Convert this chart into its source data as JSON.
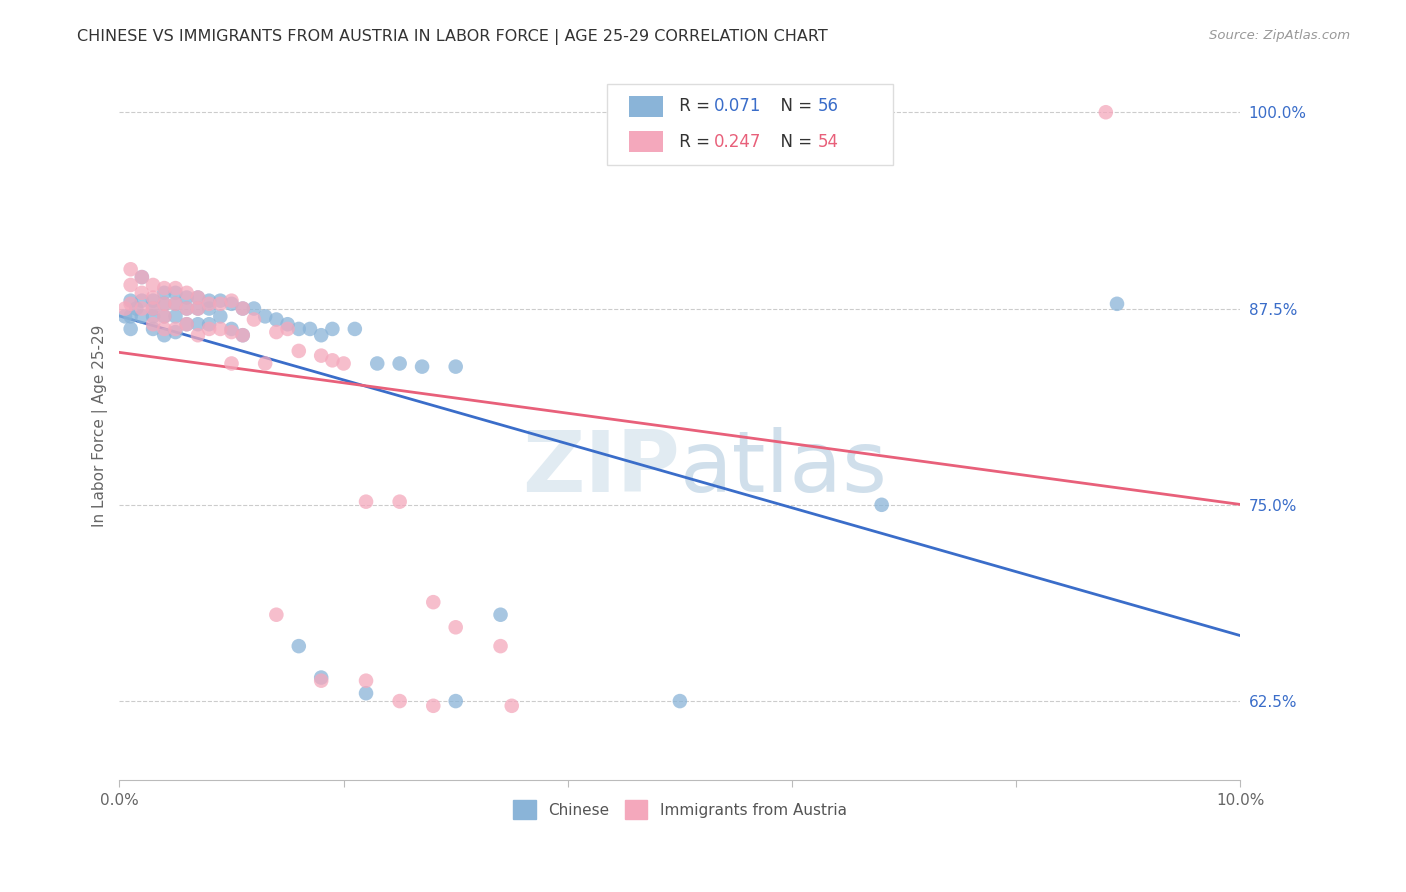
{
  "title": "CHINESE VS IMMIGRANTS FROM AUSTRIA IN LABOR FORCE | AGE 25-29 CORRELATION CHART",
  "source": "Source: ZipAtlas.com",
  "ylabel": "In Labor Force | Age 25-29",
  "xlim": [
    0.0,
    0.1
  ],
  "ylim": [
    0.575,
    1.025
  ],
  "xticks": [
    0.0,
    0.02,
    0.04,
    0.06,
    0.08,
    0.1
  ],
  "xtick_labels": [
    "0.0%",
    "",
    "",
    "",
    "",
    "10.0%"
  ],
  "ytick_labels": [
    "62.5%",
    "75.0%",
    "87.5%",
    "100.0%"
  ],
  "ytick_values": [
    0.625,
    0.75,
    0.875,
    1.0
  ],
  "grid_color": "#cccccc",
  "legend_blue_label": "R = 0.071   N = 56",
  "legend_pink_label": "R = 0.247   N = 54",
  "legend_label_chinese": "Chinese",
  "legend_label_austria": "Immigrants from Austria",
  "blue_color": "#8ab4d8",
  "pink_color": "#f4a8bc",
  "blue_line_color": "#3a6dc9",
  "pink_line_color": "#e8607a",
  "blue_R": 0.071,
  "blue_N": 56,
  "pink_R": 0.247,
  "pink_N": 54,
  "chinese_x": [
    0.0005,
    0.001,
    0.001,
    0.001,
    0.0015,
    0.002,
    0.002,
    0.002,
    0.003,
    0.003,
    0.003,
    0.003,
    0.004,
    0.004,
    0.004,
    0.004,
    0.005,
    0.005,
    0.005,
    0.005,
    0.006,
    0.006,
    0.006,
    0.007,
    0.007,
    0.007,
    0.008,
    0.008,
    0.008,
    0.009,
    0.009,
    0.01,
    0.01,
    0.011,
    0.011,
    0.012,
    0.013,
    0.014,
    0.015,
    0.016,
    0.017,
    0.018,
    0.019,
    0.021,
    0.023,
    0.025,
    0.027,
    0.03,
    0.034,
    0.016,
    0.018,
    0.022,
    0.03,
    0.05,
    0.068,
    0.089
  ],
  "chinese_y": [
    0.87,
    0.88,
    0.87,
    0.862,
    0.875,
    0.895,
    0.88,
    0.87,
    0.88,
    0.875,
    0.87,
    0.862,
    0.885,
    0.878,
    0.87,
    0.858,
    0.885,
    0.878,
    0.87,
    0.86,
    0.882,
    0.875,
    0.865,
    0.882,
    0.875,
    0.865,
    0.88,
    0.875,
    0.865,
    0.88,
    0.87,
    0.878,
    0.862,
    0.875,
    0.858,
    0.875,
    0.87,
    0.868,
    0.865,
    0.862,
    0.862,
    0.858,
    0.862,
    0.862,
    0.84,
    0.84,
    0.838,
    0.838,
    0.68,
    0.66,
    0.64,
    0.63,
    0.625,
    0.625,
    0.75,
    0.878
  ],
  "austria_x": [
    0.0005,
    0.001,
    0.001,
    0.001,
    0.002,
    0.002,
    0.002,
    0.003,
    0.003,
    0.003,
    0.003,
    0.004,
    0.004,
    0.004,
    0.004,
    0.005,
    0.005,
    0.005,
    0.006,
    0.006,
    0.006,
    0.007,
    0.007,
    0.007,
    0.008,
    0.008,
    0.009,
    0.009,
    0.01,
    0.01,
    0.011,
    0.011,
    0.012,
    0.013,
    0.014,
    0.015,
    0.016,
    0.018,
    0.019,
    0.02,
    0.022,
    0.025,
    0.028,
    0.03,
    0.034,
    0.01,
    0.014,
    0.018,
    0.022,
    0.025,
    0.028,
    0.035,
    0.068,
    0.088
  ],
  "austria_y": [
    0.875,
    0.9,
    0.89,
    0.878,
    0.895,
    0.885,
    0.875,
    0.89,
    0.882,
    0.875,
    0.865,
    0.888,
    0.878,
    0.87,
    0.862,
    0.888,
    0.878,
    0.862,
    0.885,
    0.875,
    0.865,
    0.882,
    0.875,
    0.858,
    0.878,
    0.862,
    0.878,
    0.862,
    0.88,
    0.86,
    0.875,
    0.858,
    0.868,
    0.84,
    0.86,
    0.862,
    0.848,
    0.845,
    0.842,
    0.84,
    0.752,
    0.752,
    0.688,
    0.672,
    0.66,
    0.84,
    0.68,
    0.638,
    0.638,
    0.625,
    0.622,
    0.622,
    1.0,
    1.0
  ]
}
